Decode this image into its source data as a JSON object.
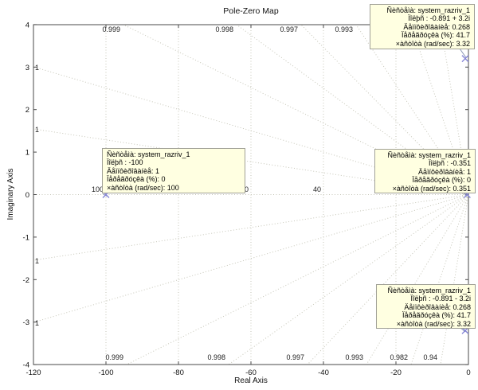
{
  "chart_data": {
    "type": "scatter",
    "subtype": "pole-zero-map",
    "title": "Pole-Zero Map",
    "xlabel": "Real Axis",
    "ylabel": "Imaginary Axis",
    "xlim": [
      -120,
      0
    ],
    "ylim": [
      -4,
      4
    ],
    "xticks": [
      "-120",
      "-100",
      "-80",
      "-60",
      "-40",
      "-20",
      "0"
    ],
    "yticks": [
      "4",
      "3",
      "2",
      "1",
      "0",
      "-1",
      "-2",
      "-3",
      "-4"
    ],
    "grid": "s-plane grid, dotted (damping-ratio rays from origin + natural-frequency lines)",
    "legend": "none",
    "series": [
      {
        "name": "poles",
        "marker": "x",
        "points": [
          {
            "x": -100,
            "y": 0
          },
          {
            "x": -0.351,
            "y": 0
          },
          {
            "x": -0.891,
            "y": 3.2
          },
          {
            "x": -0.891,
            "y": -3.2
          }
        ]
      }
    ],
    "sgrid": {
      "real_axis_line": true,
      "frequency_lines": [
        {
          "wn": 100,
          "label": "100"
        },
        {
          "wn": 80,
          "label": ""
        },
        {
          "wn": 60,
          "label": "60"
        },
        {
          "wn": 40,
          "label": "40"
        },
        {
          "wn": 20,
          "label": ""
        }
      ],
      "damping_rays": [
        {
          "label": "1",
          "edge": "left",
          "pos": 84
        },
        {
          "label": "1",
          "edge": "left",
          "pos": 162
        },
        {
          "label": "1",
          "edge": "left",
          "pos": 327
        },
        {
          "label": "1",
          "edge": "left",
          "pos": 405
        },
        {
          "label": "0.999",
          "edge": "top",
          "pos": 155
        },
        {
          "label": "0.998",
          "edge": "top",
          "pos": 297
        },
        {
          "label": "0.997",
          "edge": "top",
          "pos": 378
        },
        {
          "label": "0.993",
          "edge": "top",
          "pos": 447
        },
        {
          "label": "",
          "edge": "top",
          "pos": 516
        },
        {
          "label": "",
          "edge": "top",
          "pos": 553
        },
        {
          "label": "0.999",
          "edge": "bottom",
          "pos": 159
        },
        {
          "label": "0.998",
          "edge": "bottom",
          "pos": 287
        },
        {
          "label": "0.997",
          "edge": "bottom",
          "pos": 386
        },
        {
          "label": "0.993",
          "edge": "bottom",
          "pos": 460
        },
        {
          "label": "0.982",
          "edge": "bottom",
          "pos": 516
        },
        {
          "label": "0.94",
          "edge": "bottom",
          "pos": 553
        }
      ]
    },
    "colors": {
      "grid": "#c6c6b8",
      "grid_label": "#222222",
      "axis": "#4a4a4a",
      "tick_text": "#111111",
      "marker": "#8585d6",
      "connector": "#8a97b5",
      "datatip_bg": "#ffffe1",
      "datatip_border": "#a0a096"
    }
  },
  "datatips": [
    {
      "id": "pole-complex-upper",
      "lines": [
        "Ñèñòåìà: system_razriv_1",
        "Ïîëþñ : -0.891 + 3.2i",
        "Äåìïôèðîâàíèå: 0.268",
        "Ïåðåãðóçêà (%): 41.7",
        "×àñòîòà (rad/sec): 3.32"
      ]
    },
    {
      "id": "pole-real-fast",
      "lines": [
        "Ñèñòåìà: system_razriv_1",
        "Ïîëþñ : -100",
        "Äåìïôèðîâàíèå: 1",
        "Ïåðåãðóçêà (%): 0",
        "×àñòîòà (rad/sec): 100"
      ]
    },
    {
      "id": "pole-real-slow",
      "lines": [
        "Ñèñòåìà: system_razriv_1",
        "Ïîëþñ : -0.351",
        "Äåìïôèðîâàíèå: 1",
        "Ïåðåãðóçêà (%): 0",
        "×àñòîòà (rad/sec): 0.351"
      ]
    },
    {
      "id": "pole-complex-lower",
      "lines": [
        "Ñèñòåìà: system_razriv_1",
        "Ïîëþñ : -0.891 - 3.2i",
        "Äåìïôèðîâàíèå: 0.268",
        "Ïåðåãðóçêà (%): 41.7",
        "×àñòîòà (rad/sec): 3.32"
      ]
    }
  ]
}
